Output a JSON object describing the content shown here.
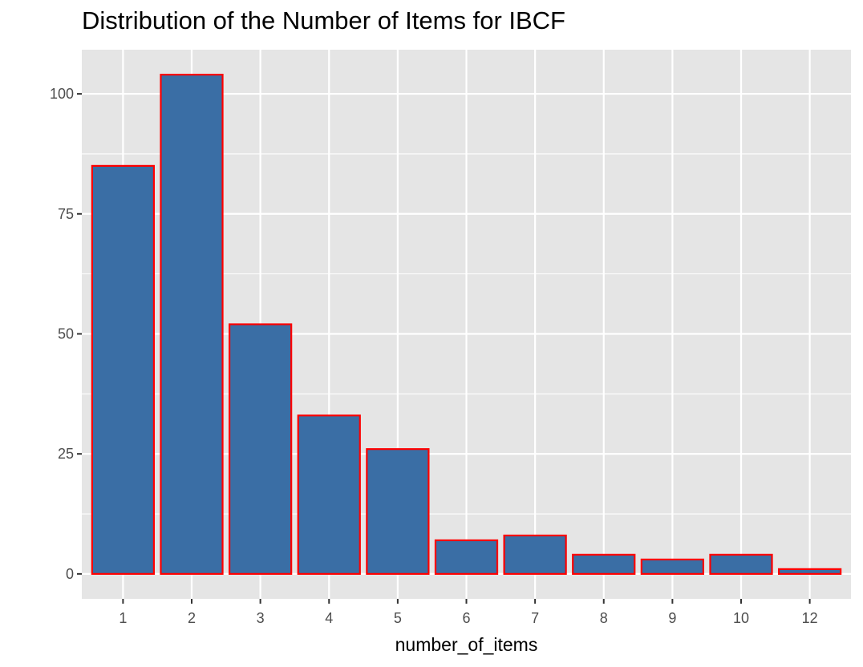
{
  "chart_data": {
    "type": "bar",
    "title": "Distribution of the Number of Items for IBCF",
    "xlabel": "number_of_items",
    "ylabel": "",
    "categories": [
      "1",
      "2",
      "3",
      "4",
      "5",
      "6",
      "7",
      "8",
      "9",
      "10",
      "12"
    ],
    "values": [
      85,
      104,
      52,
      33,
      26,
      7,
      8,
      4,
      3,
      4,
      1
    ],
    "yticks": [
      0,
      25,
      50,
      75,
      100
    ],
    "ylim": [
      -5.2,
      109.2
    ],
    "grid": true,
    "legend": "none",
    "colors": {
      "bar_fill": "#3A6EA5",
      "bar_outline": "#FF0000",
      "panel_background": "#E5E5E5",
      "grid_line": "#FFFFFF"
    }
  }
}
